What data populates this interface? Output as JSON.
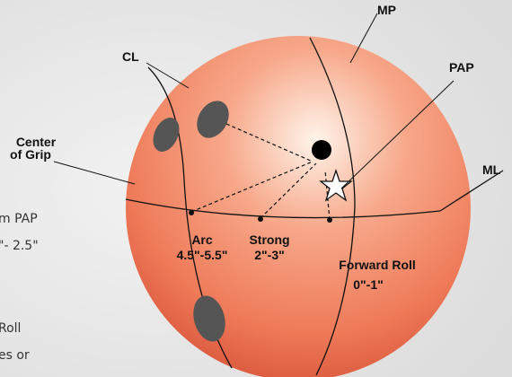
{
  "labels": {
    "mp": "MP",
    "pap": "PAP",
    "cl": "CL",
    "center_of_grip": [
      "Center",
      "of Grip"
    ],
    "ml": "ML"
  },
  "zones": [
    {
      "name": "Arc",
      "range": "4.5\"-5.5\""
    },
    {
      "name": "Strong",
      "range": "2\"-3\""
    },
    {
      "name": "Forward Roll",
      "range": "0\"-1\""
    }
  ],
  "side_text": [
    "m PAP",
    "\"- 2.5\"",
    "Roll",
    "es or"
  ]
}
